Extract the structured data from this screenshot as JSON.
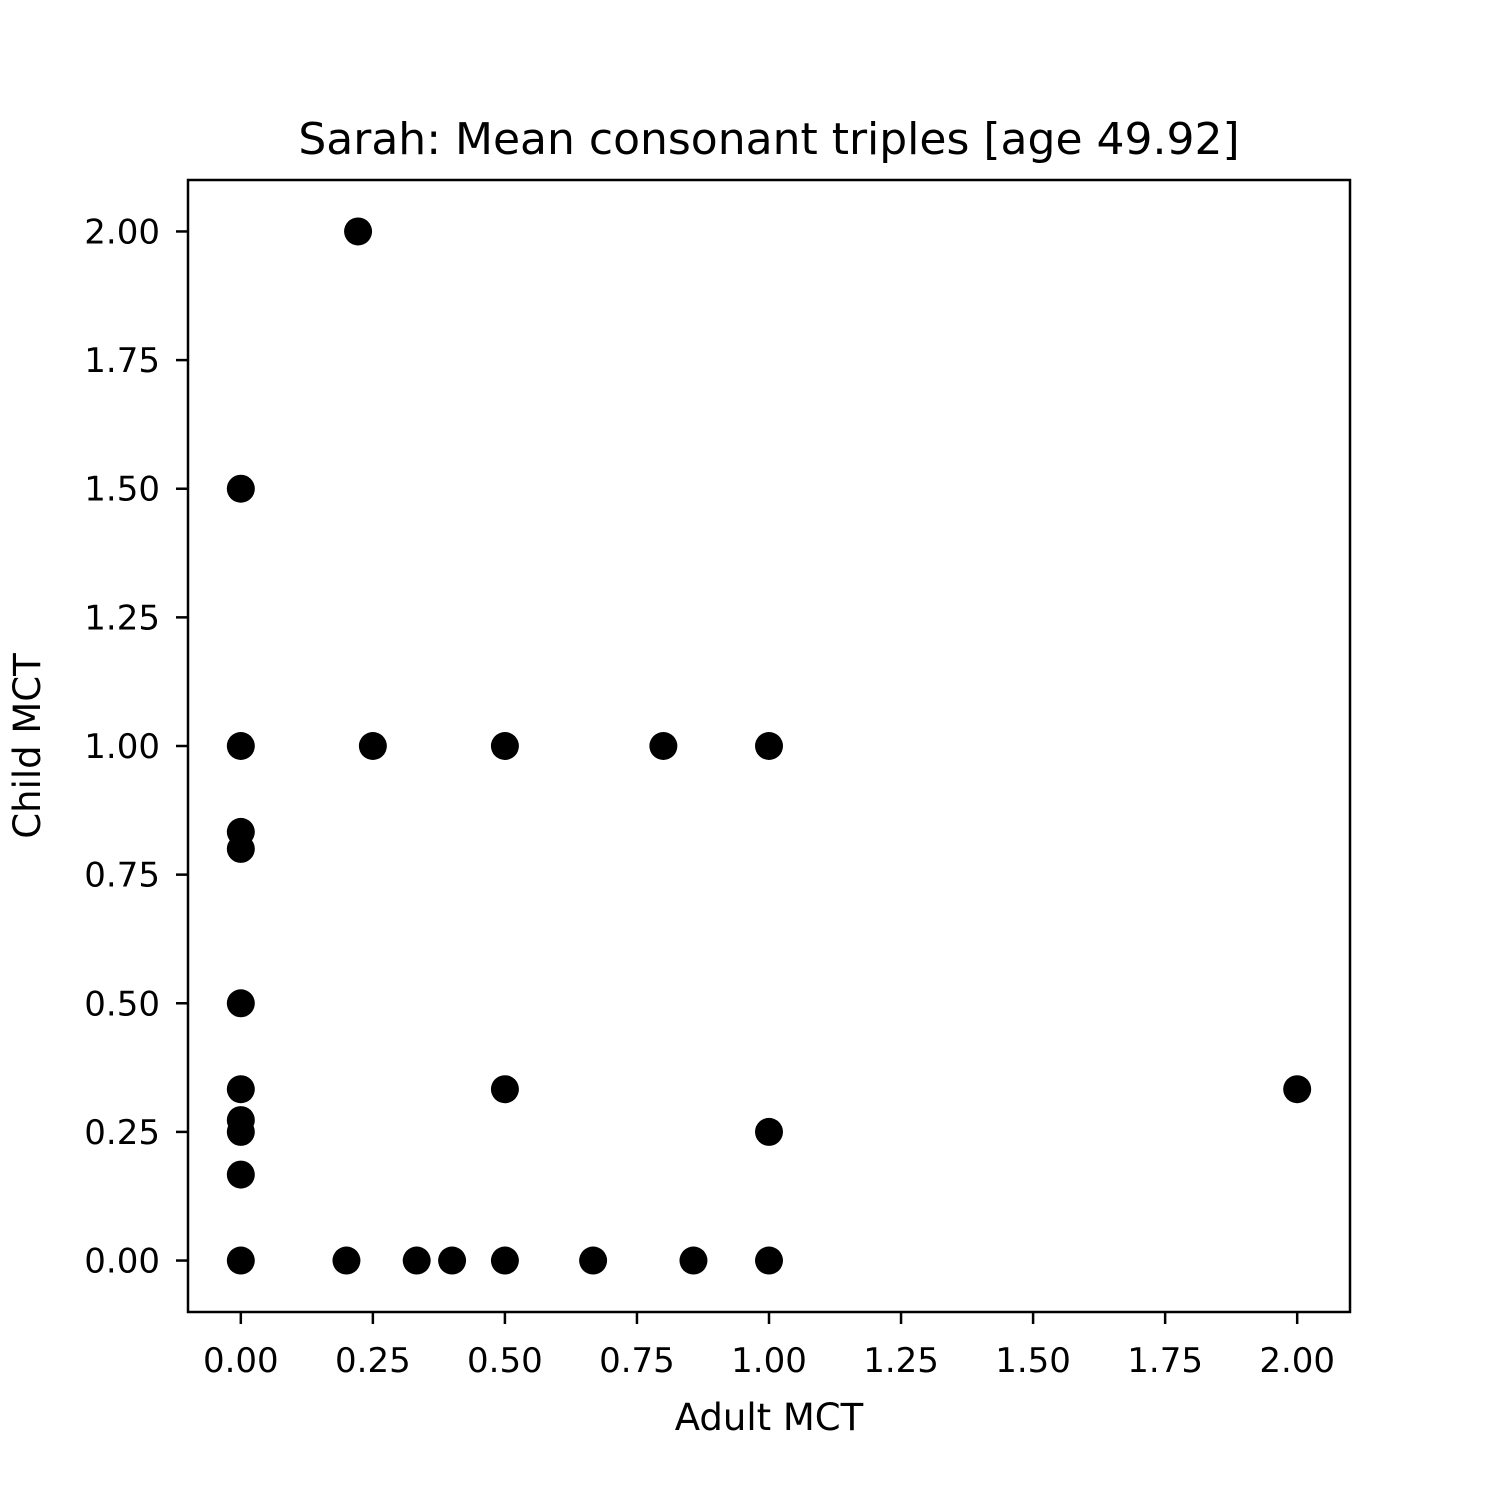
{
  "chart_data": {
    "type": "scatter",
    "title": "Sarah: Mean consonant triples [age 49.92]",
    "xlabel": "Adult MCT",
    "ylabel": "Child MCT",
    "xlim": [
      -0.1,
      2.1
    ],
    "ylim": [
      -0.1,
      2.1
    ],
    "xticks": [
      "0.00",
      "0.25",
      "0.50",
      "0.75",
      "1.00",
      "1.25",
      "1.50",
      "1.75",
      "2.00"
    ],
    "yticks": [
      "0.00",
      "0.25",
      "0.50",
      "0.75",
      "1.00",
      "1.25",
      "1.50",
      "1.75",
      "2.00"
    ],
    "grid": false,
    "marker_color": "#000000",
    "points": [
      {
        "x": 0.222,
        "y": 2.0
      },
      {
        "x": 0.0,
        "y": 1.5
      },
      {
        "x": 0.0,
        "y": 1.0
      },
      {
        "x": 0.25,
        "y": 1.0
      },
      {
        "x": 0.5,
        "y": 1.0
      },
      {
        "x": 0.8,
        "y": 1.0
      },
      {
        "x": 1.0,
        "y": 1.0
      },
      {
        "x": 0.0,
        "y": 0.833
      },
      {
        "x": 0.0,
        "y": 0.8
      },
      {
        "x": 0.0,
        "y": 0.5
      },
      {
        "x": 0.0,
        "y": 0.333
      },
      {
        "x": 0.5,
        "y": 0.333
      },
      {
        "x": 2.0,
        "y": 0.333
      },
      {
        "x": 0.0,
        "y": 0.273
      },
      {
        "x": 0.0,
        "y": 0.25
      },
      {
        "x": 1.0,
        "y": 0.25
      },
      {
        "x": 0.0,
        "y": 0.167
      },
      {
        "x": 0.0,
        "y": 0.0
      },
      {
        "x": 0.2,
        "y": 0.0
      },
      {
        "x": 0.333,
        "y": 0.0
      },
      {
        "x": 0.4,
        "y": 0.0
      },
      {
        "x": 0.5,
        "y": 0.0
      },
      {
        "x": 0.667,
        "y": 0.0
      },
      {
        "x": 0.857,
        "y": 0.0
      },
      {
        "x": 1.0,
        "y": 0.0
      }
    ]
  }
}
